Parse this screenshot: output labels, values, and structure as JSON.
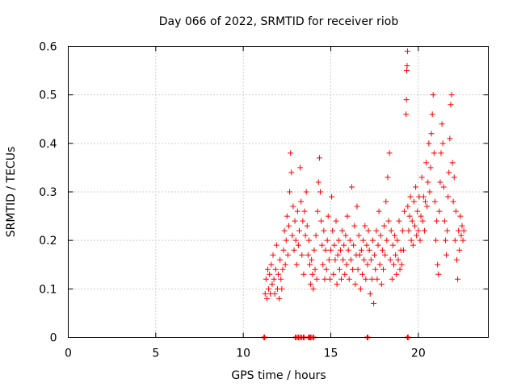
{
  "chart_data": {
    "type": "scatter",
    "title": "Day 066 of 2022, SRMTID for receiver riob",
    "xlabel": "GPS time / hours",
    "ylabel": "SRMTID / TECUs",
    "xlim": [
      0,
      24
    ],
    "ylim": [
      0,
      0.6
    ],
    "xticks": [
      {
        "value": 0,
        "label": "0"
      },
      {
        "value": 5,
        "label": "5"
      },
      {
        "value": 10,
        "label": "10"
      },
      {
        "value": 15,
        "label": "15"
      },
      {
        "value": 20,
        "label": "20"
      }
    ],
    "yticks": [
      {
        "value": 0,
        "label": "0"
      },
      {
        "value": 0.1,
        "label": "0.1"
      },
      {
        "value": 0.2,
        "label": "0.2"
      },
      {
        "value": 0.3,
        "label": "0.3"
      },
      {
        "value": 0.4,
        "label": "0.4"
      },
      {
        "value": 0.5,
        "label": "0.5"
      },
      {
        "value": 0.6,
        "label": "0.6"
      }
    ],
    "grid": true,
    "marker": "plus",
    "color": "#ff0000",
    "series": [
      {
        "name": "SRMTID",
        "points": [
          [
            11.25,
            0.09
          ],
          [
            11.3,
            0.12
          ],
          [
            11.35,
            0.08
          ],
          [
            11.4,
            0.14
          ],
          [
            11.45,
            0.1
          ],
          [
            11.5,
            0.13
          ],
          [
            11.55,
            0.09
          ],
          [
            11.6,
            0.15
          ],
          [
            11.65,
            0.11
          ],
          [
            11.7,
            0.17
          ],
          [
            11.75,
            0.12
          ],
          [
            11.8,
            0.09
          ],
          [
            11.85,
            0.14
          ],
          [
            11.9,
            0.19
          ],
          [
            11.95,
            0.1
          ],
          [
            12.0,
            0.13
          ],
          [
            12.05,
            0.08
          ],
          [
            12.1,
            0.16
          ],
          [
            12.15,
            0.12
          ],
          [
            12.2,
            0.1
          ],
          [
            12.25,
            0.14
          ],
          [
            12.3,
            0.18
          ],
          [
            12.35,
            0.22
          ],
          [
            12.4,
            0.15
          ],
          [
            12.45,
            0.2
          ],
          [
            12.5,
            0.25
          ],
          [
            12.55,
            0.17
          ],
          [
            12.6,
            0.23
          ],
          [
            12.65,
            0.3
          ],
          [
            12.7,
            0.38
          ],
          [
            12.75,
            0.34
          ],
          [
            12.8,
            0.21
          ],
          [
            12.85,
            0.27
          ],
          [
            12.9,
            0.18
          ],
          [
            12.95,
            0.24
          ],
          [
            13.0,
            0.2
          ],
          [
            13.05,
            0.15
          ],
          [
            13.1,
            0.26
          ],
          [
            13.15,
            0.19
          ],
          [
            13.2,
            0.22
          ],
          [
            13.25,
            0.35
          ],
          [
            13.3,
            0.28
          ],
          [
            13.35,
            0.17
          ],
          [
            13.4,
            0.24
          ],
          [
            13.45,
            0.13
          ],
          [
            13.5,
            0.26
          ],
          [
            13.55,
            0.21
          ],
          [
            13.6,
            0.3
          ],
          [
            13.65,
            0.23
          ],
          [
            13.7,
            0.17
          ],
          [
            13.75,
            0.2
          ],
          [
            13.8,
            0.15
          ],
          [
            13.85,
            0.11
          ],
          [
            13.9,
            0.16
          ],
          [
            13.95,
            0.13
          ],
          [
            14.0,
            0.1
          ],
          [
            14.05,
            0.18
          ],
          [
            14.1,
            0.14
          ],
          [
            14.15,
            0.21
          ],
          [
            14.2,
            0.12
          ],
          [
            14.25,
            0.26
          ],
          [
            14.3,
            0.32
          ],
          [
            14.35,
            0.37
          ],
          [
            14.4,
            0.3
          ],
          [
            14.45,
            0.24
          ],
          [
            14.5,
            0.19
          ],
          [
            14.55,
            0.15
          ],
          [
            14.6,
            0.22
          ],
          [
            14.65,
            0.12
          ],
          [
            14.7,
            0.18
          ],
          [
            14.75,
            0.14
          ],
          [
            14.8,
            0.2
          ],
          [
            14.85,
            0.25
          ],
          [
            14.9,
            0.16
          ],
          [
            14.95,
            0.12
          ],
          [
            15.0,
            0.18
          ],
          [
            15.05,
            0.29
          ],
          [
            15.1,
            0.22
          ],
          [
            15.15,
            0.13
          ],
          [
            15.2,
            0.19
          ],
          [
            15.25,
            0.16
          ],
          [
            15.3,
            0.24
          ],
          [
            15.35,
            0.11
          ],
          [
            15.4,
            0.17
          ],
          [
            15.45,
            0.2
          ],
          [
            15.5,
            0.14
          ],
          [
            15.55,
            0.18
          ],
          [
            15.6,
            0.12
          ],
          [
            15.65,
            0.22
          ],
          [
            15.7,
            0.16
          ],
          [
            15.75,
            0.19
          ],
          [
            15.8,
            0.13
          ],
          [
            15.85,
            0.21
          ],
          [
            15.9,
            0.15
          ],
          [
            15.95,
            0.25
          ],
          [
            16.0,
            0.18
          ],
          [
            16.05,
            0.12
          ],
          [
            16.1,
            0.2
          ],
          [
            16.15,
            0.16
          ],
          [
            16.2,
            0.31
          ],
          [
            16.25,
            0.14
          ],
          [
            16.3,
            0.19
          ],
          [
            16.35,
            0.23
          ],
          [
            16.4,
            0.11
          ],
          [
            16.45,
            0.17
          ],
          [
            16.5,
            0.27
          ],
          [
            16.55,
            0.14
          ],
          [
            16.6,
            0.21
          ],
          [
            16.65,
            0.17
          ],
          [
            16.7,
            0.1
          ],
          [
            16.75,
            0.18
          ],
          [
            16.8,
            0.13
          ],
          [
            16.85,
            0.2
          ],
          [
            16.9,
            0.16
          ],
          [
            16.95,
            0.23
          ],
          [
            17.0,
            0.12
          ],
          [
            17.05,
            0.19
          ],
          [
            17.1,
            0.15
          ],
          [
            17.15,
            0.22
          ],
          [
            17.2,
            0.18
          ],
          [
            17.25,
            0.09
          ],
          [
            17.3,
            0.16
          ],
          [
            17.35,
            0.12
          ],
          [
            17.4,
            0.2
          ],
          [
            17.45,
            0.07
          ],
          [
            17.5,
            0.17
          ],
          [
            17.55,
            0.14
          ],
          [
            17.6,
            0.22
          ],
          [
            17.65,
            0.12
          ],
          [
            17.7,
            0.19
          ],
          [
            17.75,
            0.26
          ],
          [
            17.8,
            0.15
          ],
          [
            17.85,
            0.21
          ],
          [
            17.9,
            0.11
          ],
          [
            17.95,
            0.18
          ],
          [
            18.0,
            0.14
          ],
          [
            18.05,
            0.23
          ],
          [
            18.1,
            0.17
          ],
          [
            18.15,
            0.28
          ],
          [
            18.2,
            0.2
          ],
          [
            18.25,
            0.33
          ],
          [
            18.3,
            0.24
          ],
          [
            18.35,
            0.38
          ],
          [
            18.4,
            0.16
          ],
          [
            18.45,
            0.22
          ],
          [
            18.5,
            0.12
          ],
          [
            18.55,
            0.19
          ],
          [
            18.6,
            0.15
          ],
          [
            18.65,
            0.21
          ],
          [
            18.7,
            0.17
          ],
          [
            18.75,
            0.13
          ],
          [
            18.8,
            0.2
          ],
          [
            18.85,
            0.16
          ],
          [
            18.9,
            0.24
          ],
          [
            18.95,
            0.14
          ],
          [
            19.0,
            0.18
          ],
          [
            19.05,
            0.15
          ],
          [
            19.1,
            0.22
          ],
          [
            19.15,
            0.18
          ],
          [
            19.2,
            0.26
          ],
          [
            19.3,
            0.46
          ],
          [
            19.32,
            0.49
          ],
          [
            19.34,
            0.55
          ],
          [
            19.36,
            0.56
          ],
          [
            19.38,
            0.59
          ],
          [
            19.4,
            0.27
          ],
          [
            19.45,
            0.22
          ],
          [
            19.5,
            0.25
          ],
          [
            19.55,
            0.29
          ],
          [
            19.6,
            0.2
          ],
          [
            19.65,
            0.24
          ],
          [
            19.7,
            0.19
          ],
          [
            19.75,
            0.28
          ],
          [
            19.8,
            0.23
          ],
          [
            19.85,
            0.31
          ],
          [
            19.9,
            0.21
          ],
          [
            19.95,
            0.26
          ],
          [
            20.0,
            0.22
          ],
          [
            20.05,
            0.29
          ],
          [
            20.1,
            0.2
          ],
          [
            20.15,
            0.25
          ],
          [
            20.2,
            0.33
          ],
          [
            20.25,
            0.24
          ],
          [
            20.3,
            0.29
          ],
          [
            20.35,
            0.22
          ],
          [
            20.4,
            0.28
          ],
          [
            20.45,
            0.36
          ],
          [
            20.5,
            0.27
          ],
          [
            20.55,
            0.32
          ],
          [
            20.6,
            0.4
          ],
          [
            20.65,
            0.3
          ],
          [
            20.7,
            0.35
          ],
          [
            20.75,
            0.42
          ],
          [
            20.8,
            0.46
          ],
          [
            20.85,
            0.5
          ],
          [
            20.9,
            0.38
          ],
          [
            20.95,
            0.28
          ],
          [
            21.0,
            0.2
          ],
          [
            21.05,
            0.24
          ],
          [
            21.1,
            0.15
          ],
          [
            21.15,
            0.13
          ],
          [
            21.2,
            0.26
          ],
          [
            21.25,
            0.32
          ],
          [
            21.3,
            0.38
          ],
          [
            21.35,
            0.44
          ],
          [
            21.4,
            0.4
          ],
          [
            21.45,
            0.31
          ],
          [
            21.5,
            0.24
          ],
          [
            21.55,
            0.2
          ],
          [
            21.6,
            0.17
          ],
          [
            21.65,
            0.22
          ],
          [
            21.7,
            0.29
          ],
          [
            21.75,
            0.34
          ],
          [
            21.8,
            0.41
          ],
          [
            21.85,
            0.48
          ],
          [
            21.9,
            0.5
          ],
          [
            21.95,
            0.36
          ],
          [
            22.0,
            0.28
          ],
          [
            22.05,
            0.33
          ],
          [
            22.1,
            0.2
          ],
          [
            22.15,
            0.26
          ],
          [
            22.2,
            0.16
          ],
          [
            22.25,
            0.12
          ],
          [
            22.3,
            0.22
          ],
          [
            22.35,
            0.18
          ],
          [
            22.4,
            0.25
          ],
          [
            22.45,
            0.21
          ],
          [
            22.5,
            0.23
          ],
          [
            22.55,
            0.2
          ],
          [
            22.6,
            0.22
          ]
        ],
        "zero_markers_x": [
          11.2,
          13.0,
          13.15,
          13.3,
          13.45,
          13.75,
          13.85,
          14.0,
          17.1,
          19.4
        ]
      }
    ]
  }
}
